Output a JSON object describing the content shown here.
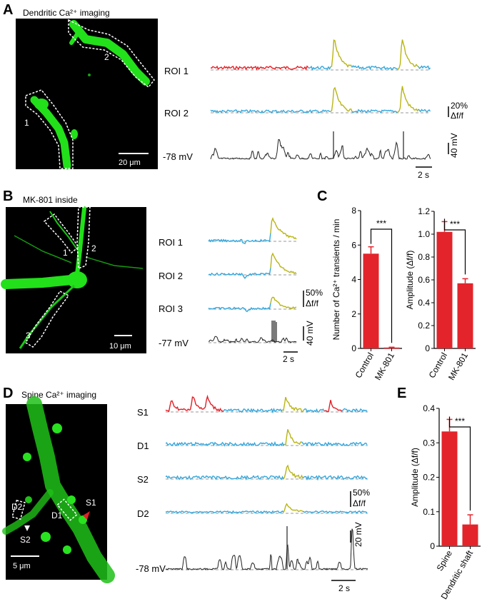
{
  "colors": {
    "baseline": "#35a7dc",
    "red": "#e21f26",
    "yellow": "#b8b514",
    "vm": "#222222",
    "neuron": "#22e01a",
    "bar": "#e3242b",
    "dash": "#999999"
  },
  "panel_a": {
    "label": "A",
    "image_title": "Dendritic Ca²⁺ imaging",
    "roi_numbers": [
      "1",
      "2"
    ],
    "scale_bar": "20 μm",
    "trace_labels": [
      "ROI 1",
      "ROI 2",
      "-78 mV"
    ],
    "amp_scale": "20%",
    "amp_unit": "Δf/f",
    "volt_scale": "40 mV",
    "time_scale": "2 s"
  },
  "panel_b": {
    "label": "B",
    "image_title": "MK-801 inside",
    "roi_numbers": [
      "1",
      "2",
      "3"
    ],
    "scale_bar": "10 μm",
    "trace_labels": [
      "ROI 1",
      "ROI 2",
      "ROI 3",
      "-77 mV"
    ],
    "amp_scale": "50%",
    "amp_unit": "Δf/f",
    "volt_scale": "40 mV",
    "time_scale": "2 s"
  },
  "panel_c": {
    "label": "C",
    "significance": [
      "***",
      "***"
    ]
  },
  "panel_d": {
    "label": "D",
    "image_title": "Spine Ca²⁺ imaging",
    "roi_labels": [
      "D2",
      "D1",
      "S1",
      "S2"
    ],
    "scale_bar": "5 μm",
    "trace_labels": [
      "S1",
      "D1",
      "S2",
      "D2",
      "-78 mV"
    ],
    "amp_scale": "50%",
    "amp_unit": "Δf/f",
    "volt_scale": "20 mV",
    "time_scale": "2 s"
  },
  "panel_e": {
    "label": "E",
    "significance": "***"
  },
  "chart_data": [
    {
      "type": "bar",
      "ylabel": "Number of Ca²⁺ transients / min",
      "categories": [
        "Control",
        "MK-801"
      ],
      "values": [
        5.5,
        0.05
      ],
      "errors": [
        0.4,
        0.02
      ],
      "ylim": [
        0,
        8
      ],
      "yticks": [
        "0",
        "2",
        "4",
        "6",
        "8"
      ],
      "grid": false
    },
    {
      "type": "bar",
      "ylabel": "Amplitude (Δf/f)",
      "categories": [
        "Control",
        "MK-801"
      ],
      "values": [
        1.02,
        0.57
      ],
      "errors": [
        0.09,
        0.04
      ],
      "ylim": [
        0,
        1.2
      ],
      "yticks": [
        "0",
        "0.2",
        "0.4",
        "0.6",
        "0.8",
        "1.0",
        "1.2"
      ],
      "grid": false
    },
    {
      "type": "bar",
      "ylabel": "Amplitude (Δf/f)",
      "categories": [
        "Spine",
        "Dendritic shaft"
      ],
      "values": [
        0.333,
        0.063
      ],
      "errors": [
        0.035,
        0.028
      ],
      "ylim": [
        0,
        0.4
      ],
      "yticks": [
        "0",
        "0.1",
        "0.2",
        "0.3",
        "0.4"
      ],
      "grid": false
    }
  ]
}
